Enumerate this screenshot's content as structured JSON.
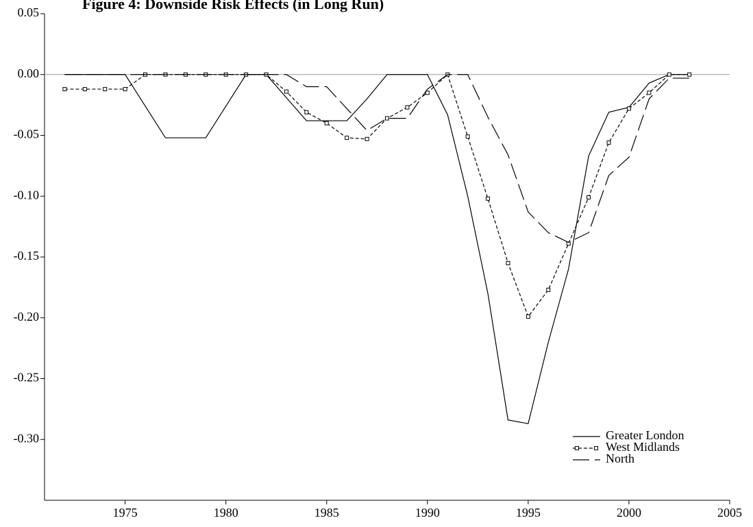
{
  "chart_data": {
    "type": "line",
    "title": "Figure 4: Downside Risk Effects (in Long Run)",
    "x": [
      1972,
      1973,
      1974,
      1975,
      1976,
      1977,
      1978,
      1979,
      1980,
      1981,
      1982,
      1983,
      1984,
      1985,
      1986,
      1987,
      1988,
      1989,
      1990,
      1991,
      1992,
      1993,
      1994,
      1995,
      1996,
      1997,
      1998,
      1999,
      2000,
      2001,
      2002,
      2003
    ],
    "series": [
      {
        "name": "Greater London",
        "color": "#000000",
        "style": "solid",
        "values": [
          0,
          0,
          0,
          0,
          -0.026,
          -0.052,
          -0.052,
          -0.052,
          -0.026,
          0,
          0,
          -0.019,
          -0.038,
          -0.038,
          -0.038,
          -0.02,
          0,
          0,
          0,
          -0.033,
          -0.1,
          -0.18,
          -0.284,
          -0.287,
          -0.22,
          -0.16,
          -0.067,
          -0.031,
          -0.027,
          -0.007,
          0,
          0
        ]
      },
      {
        "name": "West Midlands",
        "color": "#000000",
        "style": "dashed",
        "marker": "square",
        "values": [
          -0.012,
          -0.012,
          -0.012,
          -0.012,
          0,
          0,
          0,
          0,
          0,
          0,
          0,
          -0.014,
          -0.031,
          -0.04,
          -0.052,
          -0.053,
          -0.036,
          -0.027,
          -0.015,
          0,
          -0.051,
          -0.102,
          -0.155,
          -0.199,
          -0.177,
          -0.139,
          -0.101,
          -0.056,
          -0.028,
          -0.015,
          0,
          0
        ]
      },
      {
        "name": "North",
        "color": "#000000",
        "style": "long-dashed",
        "values": [
          0,
          0,
          0,
          0,
          0,
          0,
          0,
          0,
          0,
          0,
          0,
          0,
          -0.01,
          -0.01,
          -0.028,
          -0.046,
          -0.036,
          -0.036,
          -0.012,
          0,
          0,
          -0.035,
          -0.066,
          -0.113,
          -0.13,
          -0.138,
          -0.13,
          -0.083,
          -0.068,
          -0.02,
          -0.003,
          -0.003
        ]
      }
    ],
    "xlim": [
      1971,
      2005
    ],
    "xticks": [
      1975,
      1980,
      1985,
      1990,
      1995,
      2000,
      2005
    ],
    "ylim": [
      -0.35,
      0.05
    ],
    "yticks": [
      {
        "value": 0.05,
        "label": "0.05"
      },
      {
        "value": 0,
        "label": "0.00"
      },
      {
        "value": -0.05,
        "label": "-0.05"
      },
      {
        "value": -0.1,
        "label": "-0.10"
      },
      {
        "value": -0.15,
        "label": "-0.15"
      },
      {
        "value": -0.2,
        "label": "-0.20"
      },
      {
        "value": -0.25,
        "label": "-0.25"
      },
      {
        "value": -0.3,
        "label": "-0.30"
      }
    ],
    "zero_line": true,
    "legend": "lower-right"
  }
}
